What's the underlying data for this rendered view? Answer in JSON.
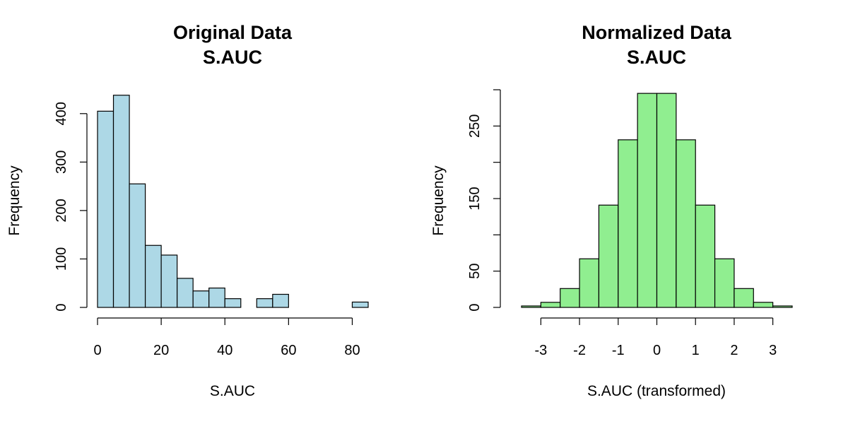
{
  "chart_data": [
    {
      "type": "bar",
      "title": "Original Data",
      "subtitle": "S.AUC",
      "xlabel": "S.AUC",
      "ylabel": "Frequency",
      "fill_color": "#add8e6",
      "bin_width": 5,
      "bin_starts": [
        0,
        5,
        10,
        15,
        20,
        25,
        30,
        35,
        40,
        45,
        50,
        55,
        60,
        65,
        70,
        75,
        80
      ],
      "values": [
        405,
        438,
        255,
        128,
        108,
        60,
        34,
        40,
        18,
        0,
        18,
        27,
        0,
        0,
        0,
        0,
        11
      ],
      "xlim": [
        0,
        85
      ],
      "ylim": [
        0,
        450
      ],
      "x_ticks": [
        0,
        20,
        40,
        60,
        80
      ],
      "x_tick_labels": [
        "0",
        "20",
        "40",
        "60",
        "80"
      ],
      "y_ticks": [
        0,
        100,
        200,
        300,
        400
      ],
      "y_tick_labels": [
        "0",
        "100",
        "200",
        "300",
        "400"
      ]
    },
    {
      "type": "bar",
      "title": "Normalized Data",
      "subtitle": "S.AUC",
      "xlabel": "S.AUC (transformed)",
      "ylabel": "Frequency",
      "fill_color": "#90ee90",
      "bin_width": 0.5,
      "bin_starts": [
        -3.5,
        -3,
        -2.5,
        -2,
        -1.5,
        -1,
        -0.5,
        0,
        0.5,
        1,
        1.5,
        2,
        2.5,
        3
      ],
      "values": [
        2,
        7,
        26,
        67,
        141,
        231,
        295,
        295,
        231,
        141,
        67,
        26,
        7,
        2
      ],
      "xlim": [
        -3.5,
        3.5
      ],
      "ylim": [
        0,
        300
      ],
      "x_ticks": [
        -3,
        -2,
        -1,
        0,
        1,
        2,
        3
      ],
      "x_tick_labels": [
        "-3",
        "-2",
        "-1",
        "0",
        "1",
        "2",
        "3"
      ],
      "y_ticks": [
        0,
        50,
        100,
        150,
        200,
        250,
        300
      ],
      "y_tick_labels": [
        "0",
        "50",
        "",
        "150",
        "",
        "250",
        ""
      ]
    }
  ]
}
